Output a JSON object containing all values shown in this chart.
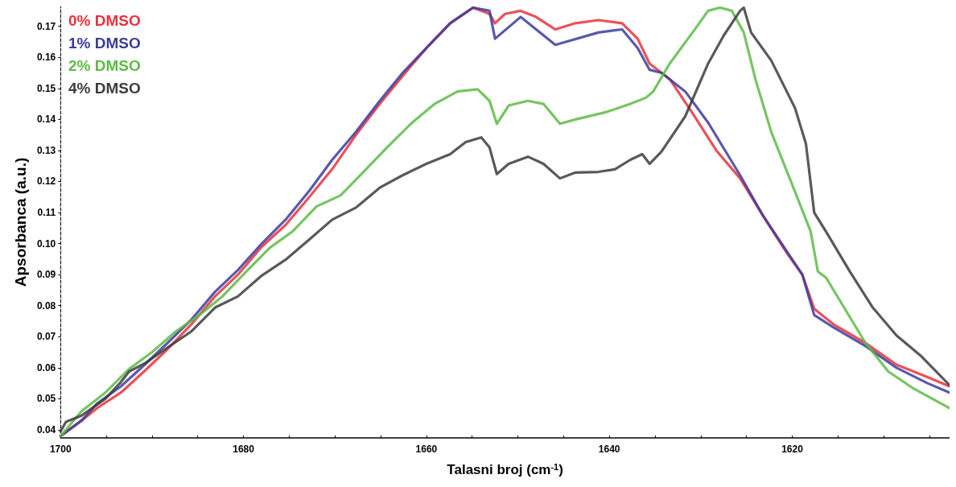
{
  "chart_data": {
    "type": "line",
    "xlabel": "Talasni broj (cm$^{-1}$)",
    "ylabel": "Apsorbanca (a.u.)",
    "xlim": [
      1700,
      1602.8
    ],
    "ylim": [
      0.0374,
      0.1764
    ],
    "xticks": [
      1700,
      {
        "value": 1695,
        "label": null
      },
      {
        "value": 1690,
        "label": null
      },
      {
        "value": 1685,
        "label": null
      },
      1680,
      {
        "value": 1675,
        "label": null
      },
      {
        "value": 1670,
        "label": null
      },
      {
        "value": 1665,
        "label": null
      },
      1660,
      {
        "value": 1655,
        "label": null
      },
      {
        "value": 1650,
        "label": null
      },
      {
        "value": 1645,
        "label": null
      },
      1640,
      {
        "value": 1635,
        "label": null
      },
      {
        "value": 1630,
        "label": null
      },
      {
        "value": 1625,
        "label": null
      },
      1620,
      {
        "value": 1615,
        "label": null
      },
      {
        "value": 1610,
        "label": null
      },
      {
        "value": 1605,
        "label": null
      }
    ],
    "yticks": [
      0.04,
      0.05,
      0.06,
      0.07,
      0.08,
      0.09,
      {
        "value": 0.1,
        "label": "0.10"
      },
      0.11,
      0.12,
      0.13,
      0.14,
      0.15,
      0.16,
      0.17
    ],
    "grid": false,
    "legend": "top left",
    "line_style": "solid",
    "series": [
      {
        "name": "0% DMSO",
        "color": "#e8323c",
        "x": [
          1700.0,
          1697.7,
          1696.0,
          1693.4,
          1690.8,
          1688.3,
          1685.7,
          1683.1,
          1680.6,
          1678.0,
          1675.4,
          1672.8,
          1670.3,
          1667.7,
          1665.1,
          1662.6,
          1660.0,
          1657.4,
          1654.9,
          1653.1,
          1652.5,
          1651.4,
          1649.7,
          1648.0,
          1645.9,
          1643.7,
          1641.2,
          1638.6,
          1636.9,
          1635.6,
          1633.4,
          1630.9,
          1628.3,
          1625.7,
          1623.2,
          1620.6,
          1618.9,
          1617.6,
          1615.5,
          1612.0,
          1608.6,
          1605.2,
          1602.8
        ],
        "values": [
          0.038,
          0.043,
          0.047,
          0.052,
          0.059,
          0.066,
          0.074,
          0.083,
          0.09,
          0.099,
          0.106,
          0.115,
          0.124,
          0.135,
          0.145,
          0.154,
          0.163,
          0.171,
          0.176,
          0.174,
          0.171,
          0.174,
          0.175,
          0.173,
          0.169,
          0.171,
          0.172,
          0.171,
          0.166,
          0.158,
          0.153,
          0.142,
          0.13,
          0.121,
          0.109,
          0.097,
          0.09,
          0.079,
          0.074,
          0.068,
          0.061,
          0.057,
          0.054
        ]
      },
      {
        "name": "1% DMSO",
        "color": "#3c3c9c",
        "x": [
          1700.0,
          1697.7,
          1696.0,
          1693.4,
          1690.8,
          1688.3,
          1685.7,
          1683.1,
          1680.6,
          1678.0,
          1675.4,
          1672.8,
          1670.3,
          1667.7,
          1665.1,
          1662.6,
          1660.0,
          1657.4,
          1654.9,
          1653.1,
          1652.5,
          1649.7,
          1645.9,
          1641.2,
          1638.6,
          1636.9,
          1635.6,
          1634.3,
          1631.7,
          1629.2,
          1625.7,
          1623.2,
          1618.9,
          1617.6,
          1615.5,
          1612.0,
          1608.6,
          1605.2,
          1602.8
        ],
        "values": [
          0.038,
          0.043,
          0.0485,
          0.054,
          0.061,
          0.068,
          0.0755,
          0.0845,
          0.0915,
          0.1,
          0.1077,
          0.117,
          0.127,
          0.136,
          0.146,
          0.155,
          0.163,
          0.171,
          0.176,
          0.175,
          0.166,
          0.173,
          0.164,
          0.168,
          0.169,
          0.163,
          0.156,
          0.155,
          0.149,
          0.139,
          0.122,
          0.109,
          0.09,
          0.077,
          0.073,
          0.067,
          0.06,
          0.055,
          0.052
        ]
      },
      {
        "name": "2% DMSO",
        "color": "#5dbb46",
        "x": [
          1700.0,
          1697.7,
          1695.1,
          1692.5,
          1690.0,
          1687.4,
          1684.8,
          1682.3,
          1679.7,
          1677.1,
          1674.6,
          1672.0,
          1669.4,
          1666.9,
          1664.3,
          1661.7,
          1659.1,
          1656.6,
          1654.4,
          1653.1,
          1652.3,
          1651.0,
          1648.9,
          1647.2,
          1645.4,
          1643.7,
          1640.3,
          1637.7,
          1636.0,
          1635.2,
          1633.4,
          1630.9,
          1629.2,
          1627.9,
          1626.6,
          1625.3,
          1624.0,
          1622.3,
          1619.7,
          1618.0,
          1617.2,
          1616.3,
          1614.6,
          1612.0,
          1609.5,
          1606.9,
          1602.8
        ],
        "values": [
          0.038,
          0.046,
          0.052,
          0.0596,
          0.065,
          0.0717,
          0.077,
          0.083,
          0.091,
          0.0987,
          0.104,
          0.112,
          0.1155,
          0.123,
          0.131,
          0.1386,
          0.145,
          0.149,
          0.1497,
          0.146,
          0.1386,
          0.1445,
          0.146,
          0.145,
          0.1386,
          0.14,
          0.1424,
          0.145,
          0.147,
          0.149,
          0.158,
          0.168,
          0.175,
          0.176,
          0.175,
          0.168,
          0.1527,
          0.136,
          0.1167,
          0.104,
          0.091,
          0.089,
          0.0807,
          0.068,
          0.0588,
          0.0536,
          0.047
        ]
      },
      {
        "name": "4% DMSO",
        "color": "#3c3c3c",
        "x": [
          1700.0,
          1699.4,
          1697.7,
          1695.1,
          1693.4,
          1692.5,
          1690.8,
          1688.3,
          1685.7,
          1683.1,
          1680.6,
          1678.0,
          1675.4,
          1672.8,
          1670.3,
          1667.7,
          1665.1,
          1662.6,
          1660.0,
          1657.4,
          1655.7,
          1654.0,
          1653.1,
          1652.3,
          1651.0,
          1648.9,
          1647.2,
          1645.4,
          1643.7,
          1641.2,
          1639.4,
          1637.7,
          1636.4,
          1635.6,
          1634.3,
          1631.7,
          1629.2,
          1627.5,
          1625.7,
          1625.3,
          1624.5,
          1622.3,
          1619.7,
          1618.5,
          1617.6,
          1616.3,
          1613.7,
          1611.2,
          1608.6,
          1606.0,
          1602.8
        ],
        "values": [
          0.0395,
          0.0426,
          0.0446,
          0.05,
          0.0554,
          0.0588,
          0.0614,
          0.0665,
          0.0717,
          0.0794,
          0.083,
          0.0897,
          0.0948,
          0.1013,
          0.1077,
          0.1116,
          0.118,
          0.122,
          0.1257,
          0.1288,
          0.1327,
          0.1342,
          0.131,
          0.1224,
          0.1257,
          0.128,
          0.1257,
          0.121,
          0.1229,
          0.1231,
          0.1239,
          0.127,
          0.1288,
          0.1257,
          0.1296,
          0.141,
          0.158,
          0.167,
          0.175,
          0.176,
          0.168,
          0.159,
          0.1437,
          0.1321,
          0.11,
          0.1038,
          0.091,
          0.0794,
          0.0704,
          0.064,
          0.0544
        ]
      }
    ]
  }
}
